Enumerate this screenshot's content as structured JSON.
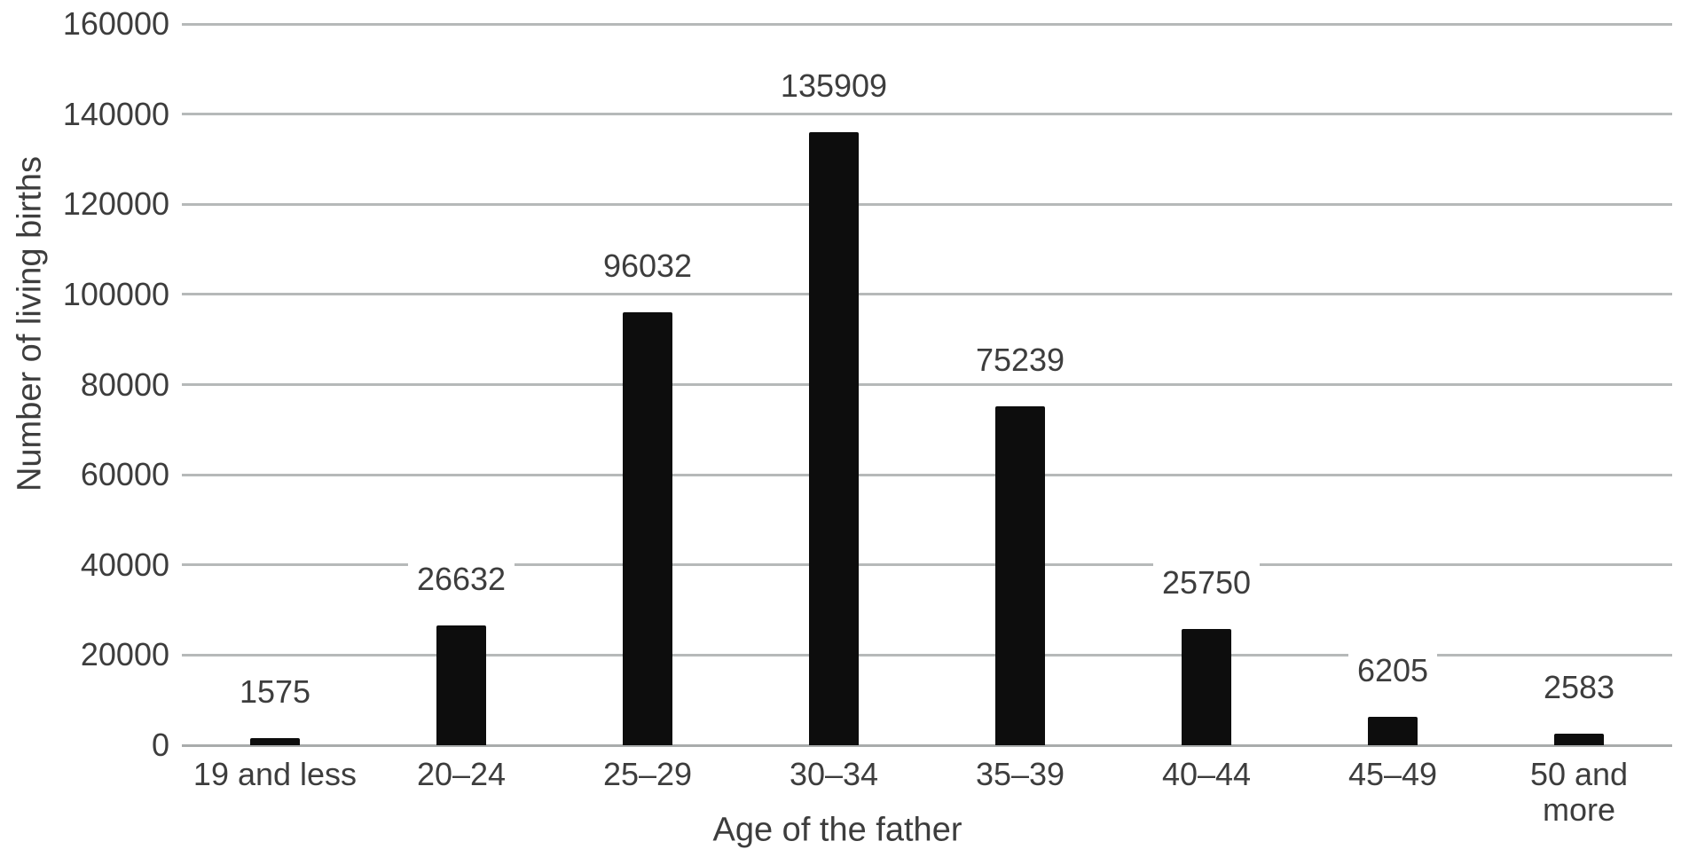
{
  "chart_data": {
    "type": "bar",
    "title": "",
    "xlabel": "Age of the father",
    "ylabel": "Number of living births",
    "categories": [
      "19 and less",
      "20–24",
      "25–29",
      "30–34",
      "35–39",
      "40–44",
      "45–49",
      "50 and\nmore"
    ],
    "values": [
      1575,
      26632,
      96032,
      135909,
      75239,
      25750,
      6205,
      2583
    ],
    "data_labels": [
      "1575",
      "26632",
      "96032",
      "135909",
      "75239",
      "25750",
      "6205",
      "2583"
    ],
    "ylim": [
      0,
      160000
    ],
    "ytick_step": 20000,
    "yticks": [
      "0",
      "20000",
      "40000",
      "60000",
      "80000",
      "100000",
      "120000",
      "140000",
      "160000"
    ],
    "grid": true,
    "legend": "none",
    "bar_color": "#0d0d0d",
    "grid_color": "#b6b9b9",
    "text_color": "#3d3d3d",
    "background_color": "#ffffff"
  }
}
